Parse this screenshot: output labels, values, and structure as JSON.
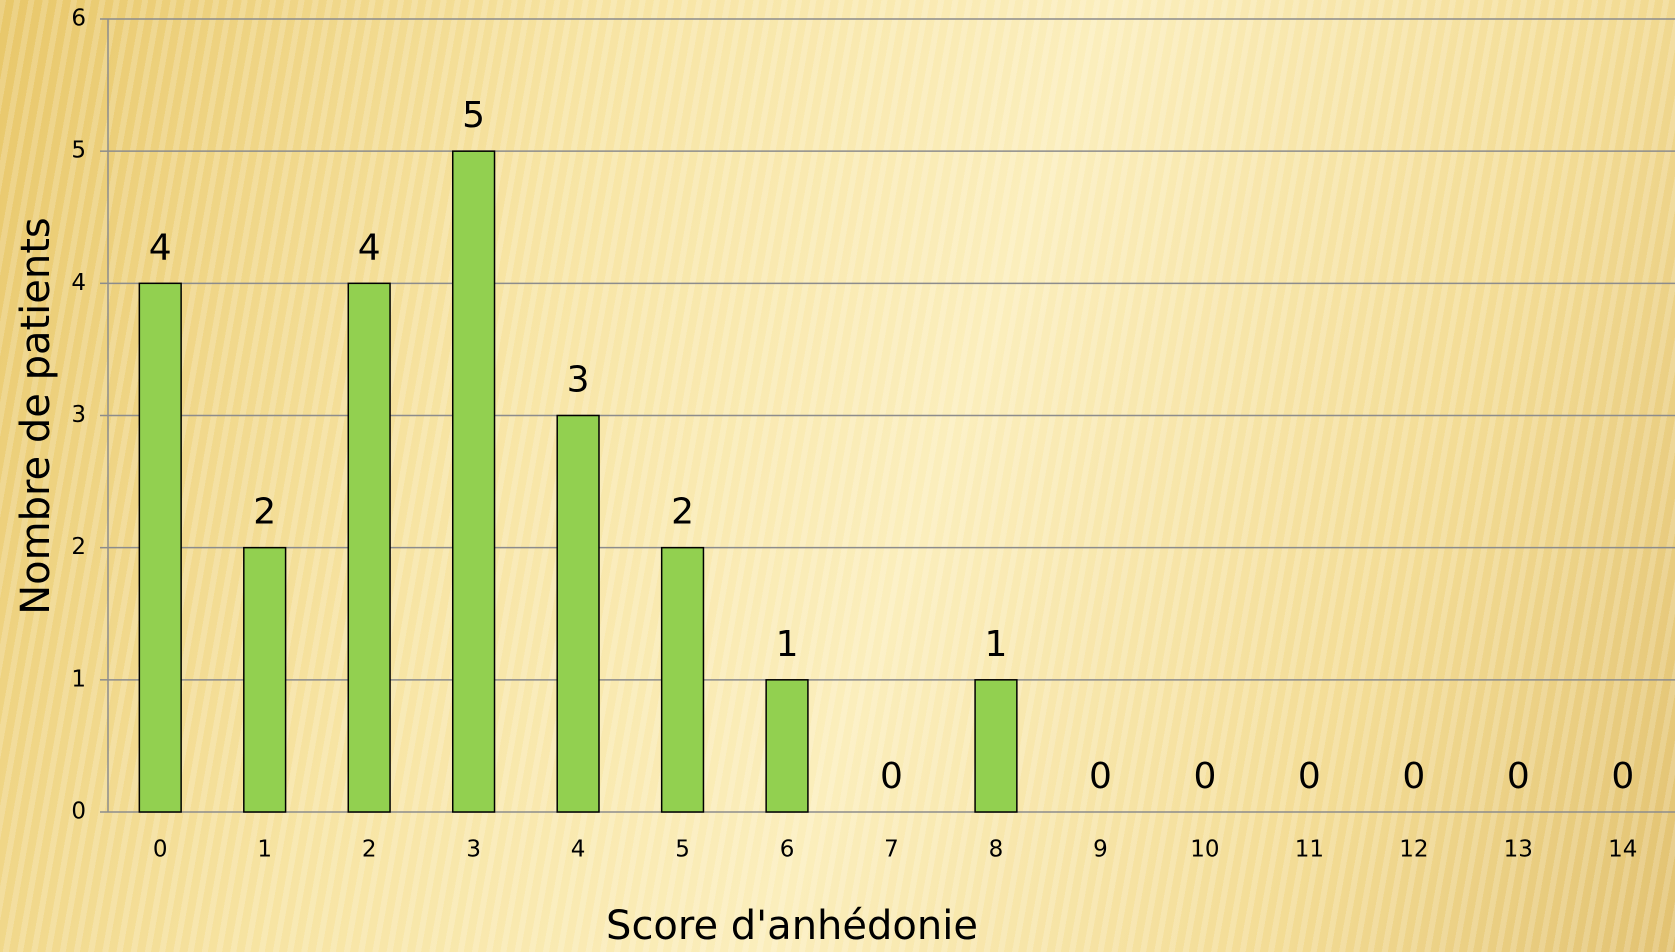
{
  "chart_data": {
    "type": "bar",
    "x_label": "Score d'anhédonie",
    "y_label": "Nombre de patients",
    "categories": [
      "0",
      "1",
      "2",
      "3",
      "4",
      "5",
      "6",
      "7",
      "8",
      "9",
      "10",
      "11",
      "12",
      "13",
      "14"
    ],
    "values": [
      4,
      2,
      4,
      5,
      3,
      2,
      1,
      0,
      1,
      0,
      0,
      0,
      0,
      0,
      0
    ],
    "color": "#92d050",
    "ylim": [
      0,
      6
    ],
    "yticks": [
      0,
      1,
      2,
      3,
      4,
      5,
      6
    ],
    "grid": true
  }
}
